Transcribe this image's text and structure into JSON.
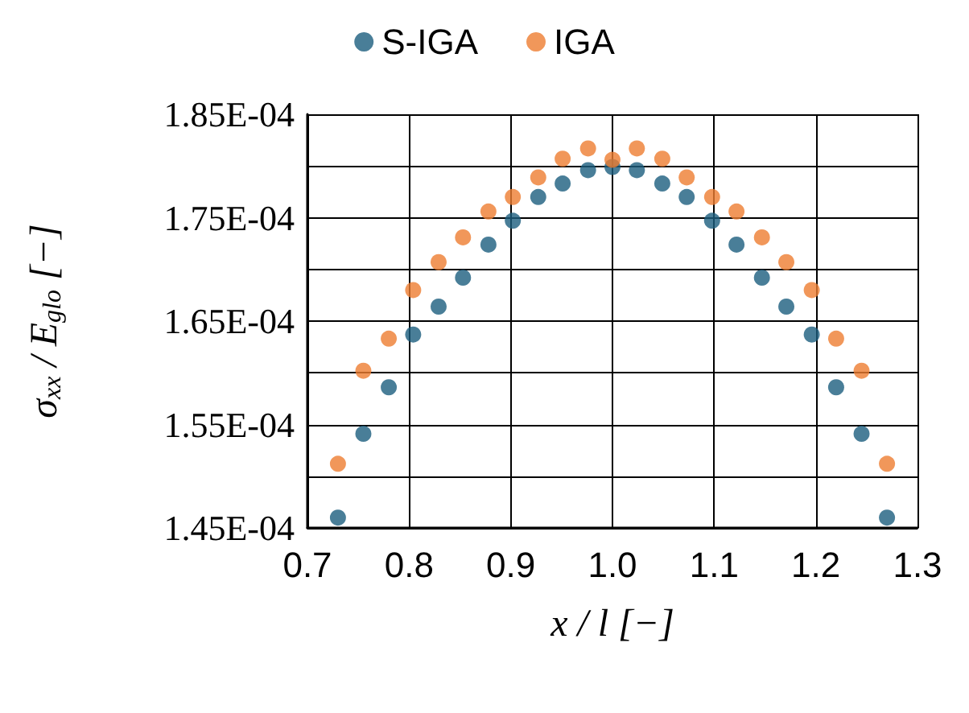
{
  "chart_data": {
    "type": "scatter",
    "xlabel": "x / l [−]",
    "ylabel": "σ$_{xx}$ / E$_{glo}$ [−]",
    "x": [
      0.73,
      0.755,
      0.78,
      0.804,
      0.829,
      0.853,
      0.878,
      0.902,
      0.927,
      0.951,
      0.976,
      1.0,
      1.024,
      1.049,
      1.073,
      1.098,
      1.122,
      1.147,
      1.171,
      1.196,
      1.22,
      1.245,
      1.27
    ],
    "series": [
      {
        "name": "S-IGA",
        "color": "#1b5e7e",
        "values": [
          0.000146,
          0.0001541,
          0.0001586,
          0.0001637,
          0.0001664,
          0.0001692,
          0.0001724,
          0.0001747,
          0.000177,
          0.0001783,
          0.0001796,
          0.0001799,
          0.0001796,
          0.0001783,
          0.000177,
          0.0001747,
          0.0001724,
          0.0001692,
          0.0001664,
          0.0001637,
          0.0001586,
          0.0001541,
          0.000146
        ]
      },
      {
        "name": "IGA",
        "color": "#ed7d31",
        "values": [
          0.0001512,
          0.0001602,
          0.0001633,
          0.000168,
          0.0001707,
          0.0001731,
          0.0001756,
          0.000177,
          0.0001789,
          0.0001807,
          0.0001817,
          0.0001806,
          0.0001817,
          0.0001807,
          0.0001789,
          0.000177,
          0.0001756,
          0.0001731,
          0.0001707,
          0.000168,
          0.0001633,
          0.0001602,
          0.0001512
        ]
      }
    ],
    "xlim": [
      0.7,
      1.3
    ],
    "xticks": [
      0.7,
      0.8,
      0.9,
      {
        "value": 1.0,
        "label": "1.0"
      },
      1.1,
      1.2,
      1.3
    ],
    "ylim": [
      0.000145,
      0.000185
    ],
    "yticks": [
      {
        "value": 0.000145,
        "label": "1.45E-04"
      },
      {
        "value": 0.00015,
        "label": null
      },
      {
        "value": 0.000155,
        "label": "1.55E-04"
      },
      {
        "value": 0.00016,
        "label": null
      },
      {
        "value": 0.000165,
        "label": "1.65E-04"
      },
      {
        "value": 0.00017,
        "label": null
      },
      {
        "value": 0.000175,
        "label": "1.75E-04"
      },
      {
        "value": 0.00018,
        "label": null
      },
      {
        "value": 0.000185,
        "label": "1.85E-04"
      }
    ],
    "grid": true,
    "legend": "top",
    "marker": "circle"
  }
}
